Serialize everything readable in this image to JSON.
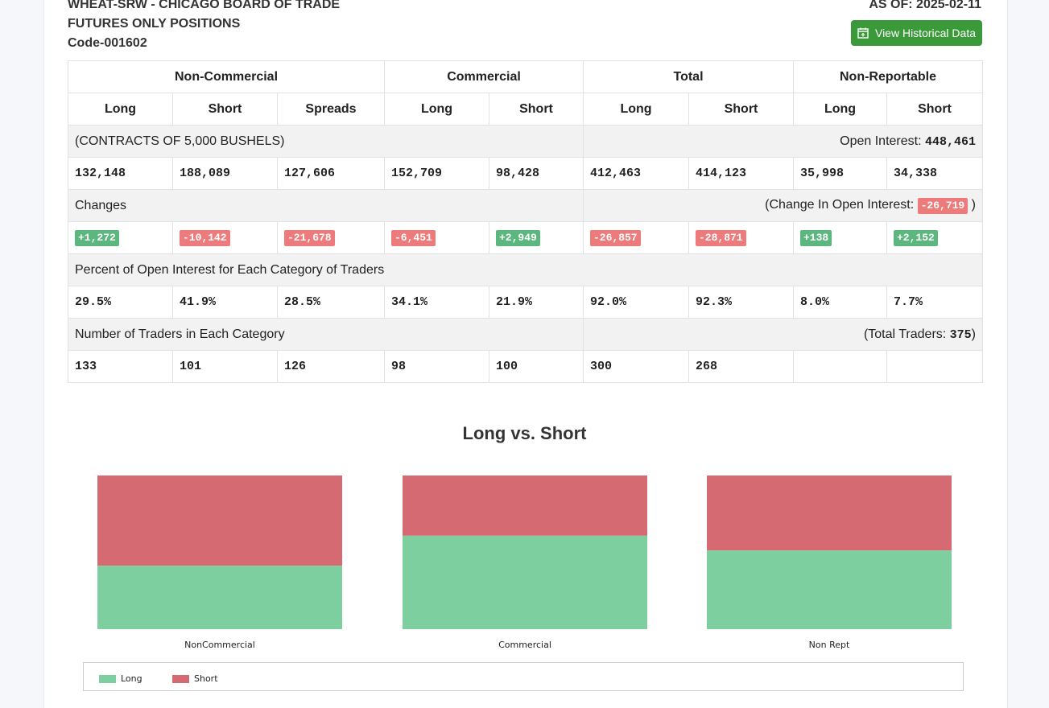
{
  "header": {
    "line1": "WHEAT-SRW - CHICAGO BOARD OF TRADE",
    "line2": "FUTURES ONLY POSITIONS",
    "code": "Code-001602",
    "as_of": "AS OF: 2025-02-11",
    "history_button": "View Historical Data"
  },
  "table": {
    "groups": [
      "Non-Commercial",
      "Commercial",
      "Total",
      "Non-Reportable"
    ],
    "subheaders": [
      "Long",
      "Short",
      "Spreads",
      "Long",
      "Short",
      "Long",
      "Short",
      "Long",
      "Short"
    ],
    "contracts_label": "(CONTRACTS OF 5,000 BUSHELS)",
    "open_interest_label": "Open Interest: ",
    "open_interest": "448,461",
    "positions": [
      "132,148",
      "188,089",
      "127,606",
      "152,709",
      "98,428",
      "412,463",
      "414,123",
      "35,998",
      "34,338"
    ],
    "changes_label": "Changes",
    "change_oi_prefix": "(Change In Open Interest: ",
    "change_oi": "-26,719",
    "change_oi_suffix": " )",
    "changes": [
      "+1,272",
      "-10,142",
      "-21,678",
      "-6,451",
      "+2,949",
      "-26,857",
      "-28,871",
      "+138",
      "+2,152"
    ],
    "percent_label": "Percent of Open Interest for Each Category of Traders",
    "percents": [
      "29.5%",
      "41.9%",
      "28.5%",
      "34.1%",
      "21.9%",
      "92.0%",
      "92.3%",
      "8.0%",
      "7.7%"
    ],
    "traders_label": "Number of Traders in Each Category",
    "total_traders_prefix": "(Total Traders: ",
    "total_traders": "375",
    "total_traders_suffix": ")",
    "traders": [
      "133",
      "101",
      "126",
      "98",
      "100",
      "300",
      "268",
      "",
      ""
    ]
  },
  "colors": {
    "long": "#7dcfa0",
    "short": "#d66a72",
    "badge_pos": "#5cb77f",
    "badge_neg": "#ee7b7b",
    "button": "#3a9a3a"
  },
  "chart_data": {
    "type": "bar",
    "stacked": true,
    "normalized": true,
    "title": "Long vs. Short",
    "categories": [
      "NonCommercial",
      "Commercial",
      "Non Rept"
    ],
    "series": [
      {
        "name": "Long",
        "values": [
          132148,
          152709,
          35998
        ]
      },
      {
        "name": "Short",
        "values": [
          188089,
          98428,
          34338
        ]
      }
    ],
    "legend_position": "bottom"
  }
}
